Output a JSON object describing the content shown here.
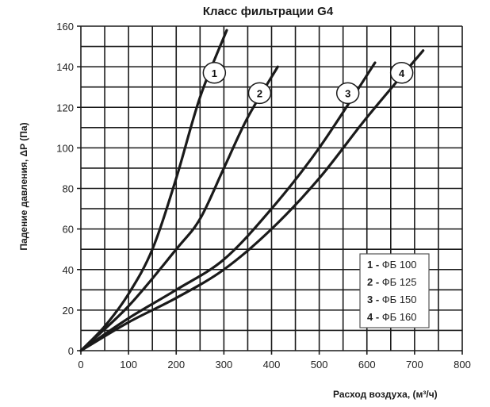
{
  "chart_data": {
    "type": "line",
    "title": "Класс фильтрации G4",
    "xlabel": "Расход воздуха, (м³/ч)",
    "ylabel": "Падение давления, ΔP (Па)",
    "xlim": [
      0,
      800
    ],
    "ylim": [
      0,
      160
    ],
    "xticks": [
      0,
      100,
      200,
      300,
      400,
      500,
      600,
      700,
      800
    ],
    "yticks": [
      0,
      20,
      40,
      60,
      80,
      100,
      120,
      140,
      160
    ],
    "grid": true,
    "legend_position": "bottom-right",
    "series": [
      {
        "name": "ФБ 100",
        "number": "1",
        "label_at": [
          280,
          137
        ],
        "x": [
          0,
          50,
          100,
          150,
          200,
          250,
          306
        ],
        "y": [
          0,
          12,
          28,
          50,
          85,
          125,
          158
        ]
      },
      {
        "name": "ФБ 125",
        "number": "2",
        "label_at": [
          375,
          127
        ],
        "x": [
          0,
          100,
          200,
          250,
          300,
          350,
          413
        ],
        "y": [
          0,
          22,
          50,
          65,
          90,
          115,
          140
        ]
      },
      {
        "name": "ФБ 150",
        "number": "3",
        "label_at": [
          560,
          127
        ],
        "x": [
          0,
          100,
          200,
          300,
          400,
          500,
          617
        ],
        "y": [
          0,
          16,
          30,
          45,
          70,
          100,
          142
        ]
      },
      {
        "name": "ФБ 160",
        "number": "4",
        "label_at": [
          673,
          137
        ],
        "x": [
          0,
          100,
          200,
          300,
          400,
          500,
          600,
          718
        ],
        "y": [
          0,
          14,
          26,
          40,
          60,
          85,
          115,
          148
        ]
      }
    ]
  }
}
